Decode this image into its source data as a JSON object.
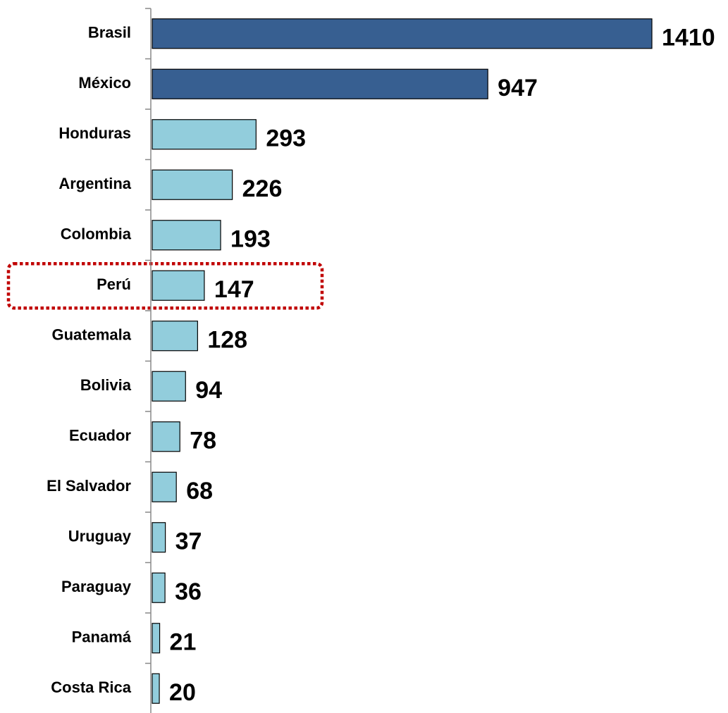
{
  "chart_data": {
    "type": "barh",
    "categories": [
      "Brasil",
      "México",
      "Honduras",
      "Argentina",
      "Colombia",
      "Perú",
      "Guatemala",
      "Bolivia",
      "Ecuador",
      "El Salvador",
      "Uruguay",
      "Paraguay",
      "Panamá",
      "Costa Rica"
    ],
    "values": [
      1410,
      947,
      293,
      226,
      193,
      147,
      128,
      94,
      78,
      68,
      37,
      36,
      21,
      20
    ],
    "colors": [
      "#375f91",
      "#375f91",
      "#92cddc",
      "#92cddc",
      "#92cddc",
      "#92cddc",
      "#92cddc",
      "#92cddc",
      "#92cddc",
      "#92cddc",
      "#92cddc",
      "#92cddc",
      "#92cddc",
      "#92cddc"
    ],
    "highlight": "Perú",
    "highlight_color": "#c00000"
  }
}
